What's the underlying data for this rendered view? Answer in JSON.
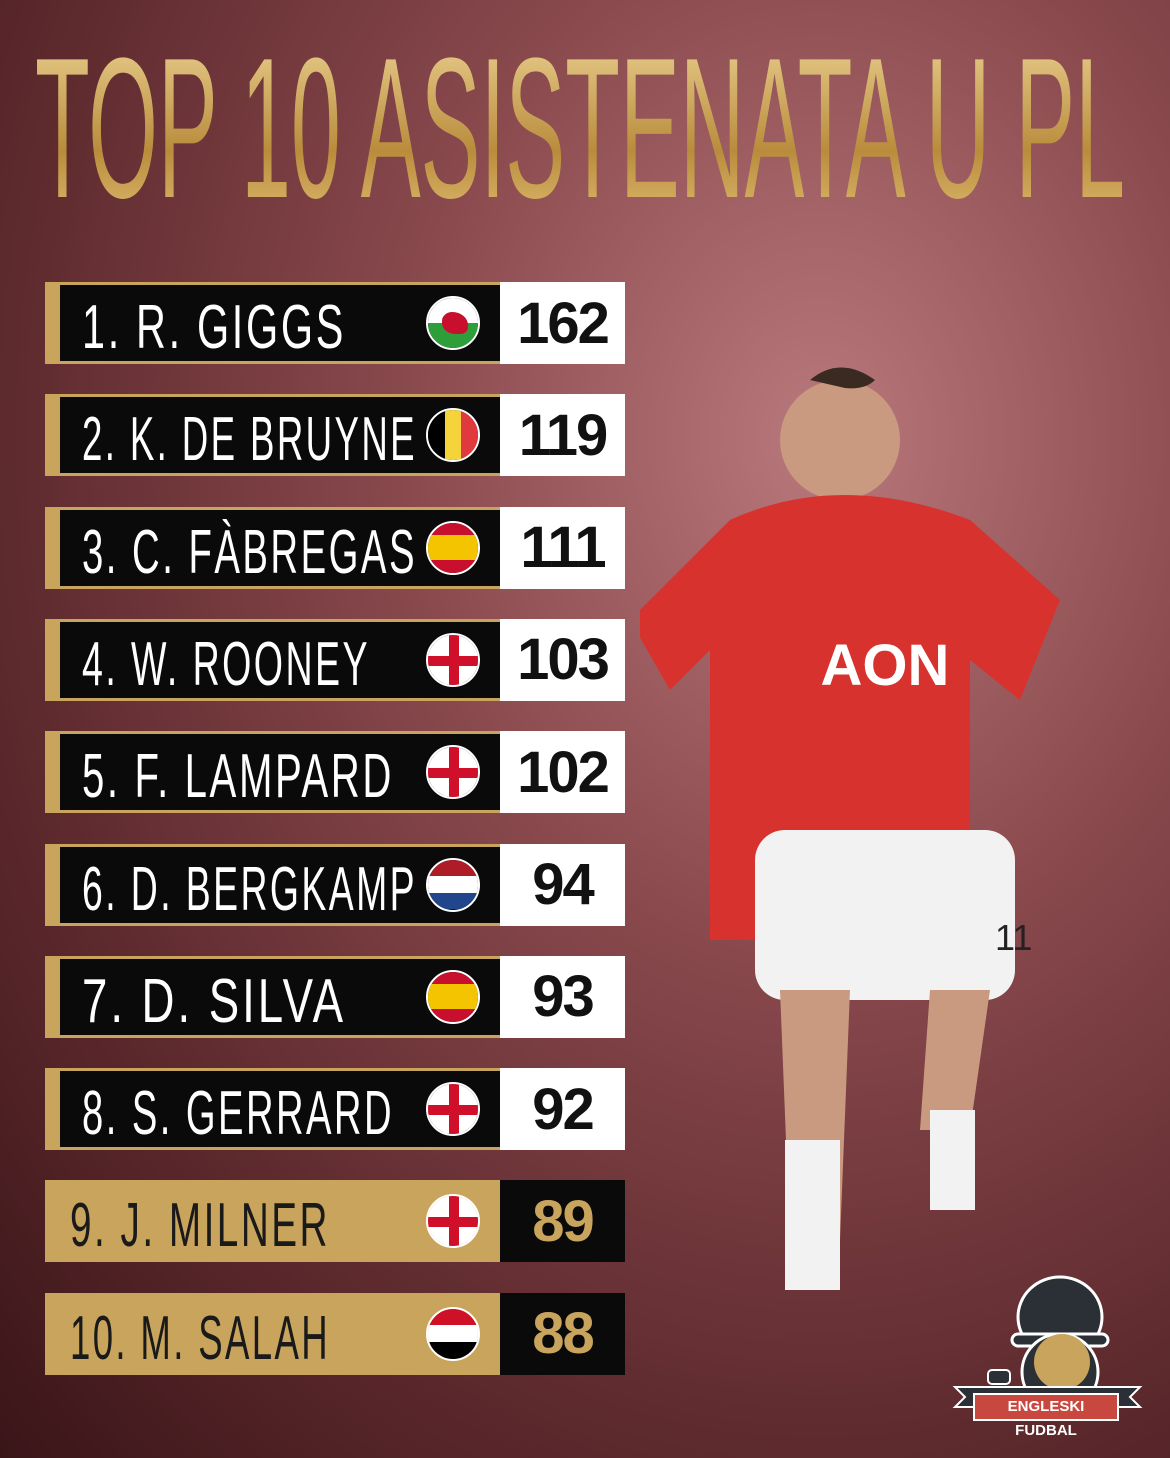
{
  "title": "TOP 10 ASISTENATA U PL",
  "colors": {
    "gold": "#c9a45c",
    "black": "#0a0a0a",
    "background": "#7a3c40"
  },
  "rows": [
    {
      "label": "1. R. GIGGS",
      "flag": "wales",
      "value": "162"
    },
    {
      "label": "2. K. DE BRUYNE",
      "flag": "belgium",
      "value": "119"
    },
    {
      "label": "3. C. FÀBREGAS",
      "flag": "spain",
      "value": "111"
    },
    {
      "label": "4. W. ROONEY",
      "flag": "england",
      "value": "103"
    },
    {
      "label": "5. F. LAMPARD",
      "flag": "england",
      "value": "102"
    },
    {
      "label": "6. D. BERGKAMP",
      "flag": "netherlands",
      "value": "94"
    },
    {
      "label": "7. D. SILVA",
      "flag": "spain",
      "value": "93"
    },
    {
      "label": "8. S. GERRARD",
      "flag": "england",
      "value": "92"
    },
    {
      "label": "9. J. MILNER",
      "flag": "england",
      "value": "89"
    },
    {
      "label": "10. M. SALAH",
      "flag": "egypt",
      "value": "88"
    }
  ],
  "player": {
    "shirt_sponsor": "AON",
    "shirt_number": "11"
  },
  "logo": {
    "text": "ENGLESKI FUDBAL"
  }
}
